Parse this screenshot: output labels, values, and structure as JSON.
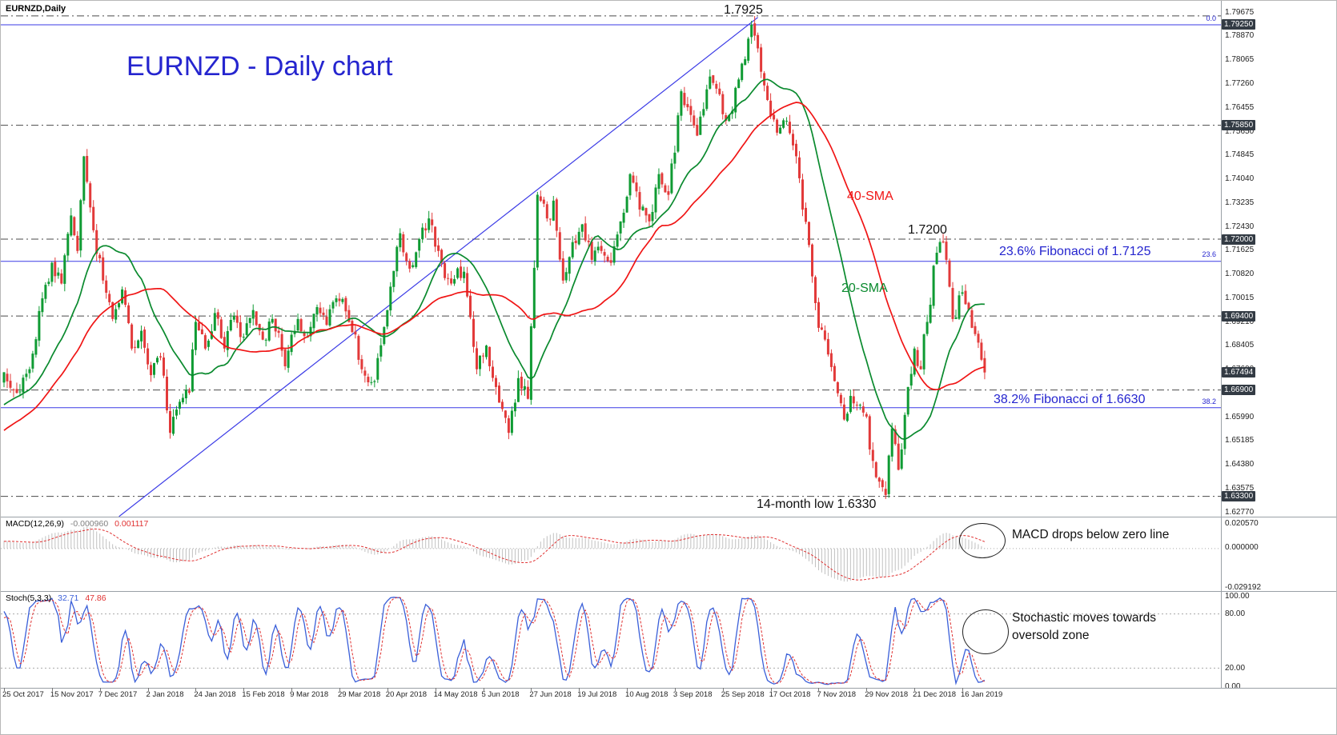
{
  "symbol_label": "EURNZD,Daily",
  "colors": {
    "up": "#0f9b33",
    "down": "#e23a3a",
    "sma20": "#0a8a2e",
    "sma40": "#f01515",
    "line_blue": "#3a3ae6",
    "text_blue": "#2525cf",
    "macd_hist": "#c0c0c0",
    "macd_signal": "#e03030",
    "stoch_k": "#3a5fd9",
    "stoch_d": "#e03030",
    "highlight_bg": "#333b44",
    "sr_line": "#4a4a4a"
  },
  "main_chart": {
    "title": "EURNZD - Daily chart",
    "peak_label": "1.7925",
    "sma40_label": "40-SMA",
    "sma20_label": "20-SMA",
    "level_label": "1.7200",
    "fib236_label": "23.6% Fibonacci of 1.7125",
    "fib382_label": "38.2% Fibonacci of 1.6630",
    "low_label": "14-month low 1.6330"
  },
  "macd_panel": {
    "name": "MACD(12,26,9)",
    "value_main": "-0.000960",
    "value_signal": "0.001117",
    "annotation": "MACD drops below zero line",
    "axis_labels": [
      "0.020570",
      "0.000000",
      "-0.029192"
    ]
  },
  "stoch_panel": {
    "name": "Stoch(5,3,3)",
    "value_main": "32.71",
    "value_signal": "47.86",
    "annotation_line1": "Stochastic moves towards",
    "annotation_line2": "oversold zone",
    "axis_labels": [
      "100.00",
      "80.00",
      "20.00",
      "0.00"
    ]
  },
  "chart_data": {
    "type": "candlestick",
    "symbol": "EURNZD",
    "timeframe": "Daily",
    "current_price": 1.67494,
    "y_range": {
      "max": 1.8006,
      "min": 1.62615
    },
    "price_axis_ticks": [
      1.79675,
      1.7887,
      1.78065,
      1.7726,
      1.76455,
      1.7565,
      1.74845,
      1.7404,
      1.73235,
      1.7243,
      1.71625,
      1.7082,
      1.70015,
      1.6921,
      1.68405,
      1.676,
      1.66795,
      1.6599,
      1.65185,
      1.6438,
      1.63575,
      1.6277
    ],
    "price_axis_highlighted": [
      1.7925,
      1.7585,
      1.72,
      1.694,
      1.67494,
      1.669,
      1.633
    ],
    "time_axis_labels": [
      "25 Oct 2017",
      "15 Nov 2017",
      "7 Dec 2017",
      "2 Jan 2018",
      "24 Jan 2018",
      "15 Feb 2018",
      "9 Mar 2018",
      "29 Mar 2018",
      "20 Apr 2018",
      "14 May 2018",
      "5 Jun 2018",
      "27 Jun 2018",
      "19 Jul 2018",
      "10 Aug 2018",
      "3 Sep 2018",
      "25 Sep 2018",
      "17 Oct 2018",
      "7 Nov 2018",
      "29 Nov 2018",
      "21 Dec 2018",
      "16 Jan 2019"
    ],
    "label_interval_days": 15,
    "total_days": 308,
    "price_keypoints": [
      [
        0,
        1.675
      ],
      [
        4,
        1.668
      ],
      [
        8,
        1.676
      ],
      [
        12,
        1.7
      ],
      [
        15,
        1.712
      ],
      [
        18,
        1.705
      ],
      [
        21,
        1.728
      ],
      [
        23,
        1.716
      ],
      [
        25,
        1.748
      ],
      [
        28,
        1.723
      ],
      [
        31,
        1.706
      ],
      [
        34,
        1.693
      ],
      [
        37,
        1.703
      ],
      [
        40,
        1.683
      ],
      [
        43,
        1.689
      ],
      [
        46,
        1.674
      ],
      [
        49,
        1.68
      ],
      [
        52,
        1.6545
      ],
      [
        55,
        1.665
      ],
      [
        58,
        1.668
      ],
      [
        60,
        1.692
      ],
      [
        63,
        1.683
      ],
      [
        66,
        1.695
      ],
      [
        69,
        1.683
      ],
      [
        72,
        1.694
      ],
      [
        75,
        1.687
      ],
      [
        78,
        1.696
      ],
      [
        81,
        1.686
      ],
      [
        84,
        1.693
      ],
      [
        88,
        1.677
      ],
      [
        92,
        1.693
      ],
      [
        95,
        1.687
      ],
      [
        98,
        1.697
      ],
      [
        101,
        1.691
      ],
      [
        104,
        1.7
      ],
      [
        108,
        1.692
      ],
      [
        112,
        1.676
      ],
      [
        116,
        1.672
      ],
      [
        120,
        1.696
      ],
      [
        124,
        1.722
      ],
      [
        127,
        1.71
      ],
      [
        130,
        1.72
      ],
      [
        133,
        1.727
      ],
      [
        136,
        1.716
      ],
      [
        140,
        1.705
      ],
      [
        144,
        1.709
      ],
      [
        148,
        1.676
      ],
      [
        151,
        1.684
      ],
      [
        154,
        1.67
      ],
      [
        158,
        1.6545
      ],
      [
        161,
        1.673
      ],
      [
        164,
        1.666
      ],
      [
        167,
        1.735
      ],
      [
        170,
        1.727
      ],
      [
        172,
        1.733
      ],
      [
        175,
        1.706
      ],
      [
        178,
        1.719
      ],
      [
        181,
        1.725
      ],
      [
        184,
        1.713
      ],
      [
        187,
        1.716
      ],
      [
        190,
        1.712
      ],
      [
        193,
        1.726
      ],
      [
        196,
        1.742
      ],
      [
        199,
        1.73
      ],
      [
        202,
        1.726
      ],
      [
        205,
        1.742
      ],
      [
        208,
        1.735
      ],
      [
        212,
        1.77
      ],
      [
        215,
        1.762
      ],
      [
        217,
        1.755
      ],
      [
        221,
        1.775
      ],
      [
        224,
        1.769
      ],
      [
        226,
        1.76
      ],
      [
        230,
        1.774
      ],
      [
        234,
        1.7925
      ],
      [
        238,
        1.772
      ],
      [
        242,
        1.756
      ],
      [
        245,
        1.76
      ],
      [
        248,
        1.748
      ],
      [
        250,
        1.73
      ],
      [
        252,
        1.718
      ],
      [
        255,
        1.69
      ],
      [
        258,
        1.681
      ],
      [
        260,
        1.672
      ],
      [
        263,
        1.659
      ],
      [
        265,
        1.667
      ],
      [
        268,
        1.664
      ],
      [
        270,
        1.66
      ],
      [
        272,
        1.645
      ],
      [
        274,
        1.638
      ],
      [
        276,
        1.6335
      ],
      [
        278,
        1.656
      ],
      [
        280,
        1.642
      ],
      [
        283,
        1.67
      ],
      [
        285,
        1.683
      ],
      [
        287,
        1.676
      ],
      [
        289,
        1.692
      ],
      [
        291,
        1.711
      ],
      [
        293,
        1.719
      ],
      [
        295,
        1.713
      ],
      [
        297,
        1.693
      ],
      [
        299,
        1.701
      ],
      [
        301,
        1.698
      ],
      [
        303,
        1.69
      ],
      [
        305,
        1.685
      ],
      [
        307,
        1.6749
      ]
    ],
    "overlays": [
      {
        "name": "20-SMA",
        "period": 20
      },
      {
        "name": "40-SMA",
        "period": 40
      }
    ],
    "fibonacci_levels": [
      {
        "label": "0.0",
        "price": 1.7925
      },
      {
        "label": "23.6",
        "price": 1.7125
      },
      {
        "label": "38.2",
        "price": 1.663
      }
    ],
    "horizontal_levels": [
      1.7955,
      1.7585,
      1.72,
      1.694,
      1.669,
      1.633
    ],
    "trendline": {
      "day1": 36,
      "price1": 1.6262,
      "day2": 236,
      "price2": 1.795
    },
    "indicators": {
      "macd": {
        "fast": 12,
        "slow": 26,
        "signal": 9,
        "scale_max": 0.02057,
        "scale_min": -0.029192
      },
      "stochastic": {
        "k": 5,
        "d": 3,
        "slowing": 3,
        "levels": [
          80,
          20
        ]
      }
    }
  }
}
